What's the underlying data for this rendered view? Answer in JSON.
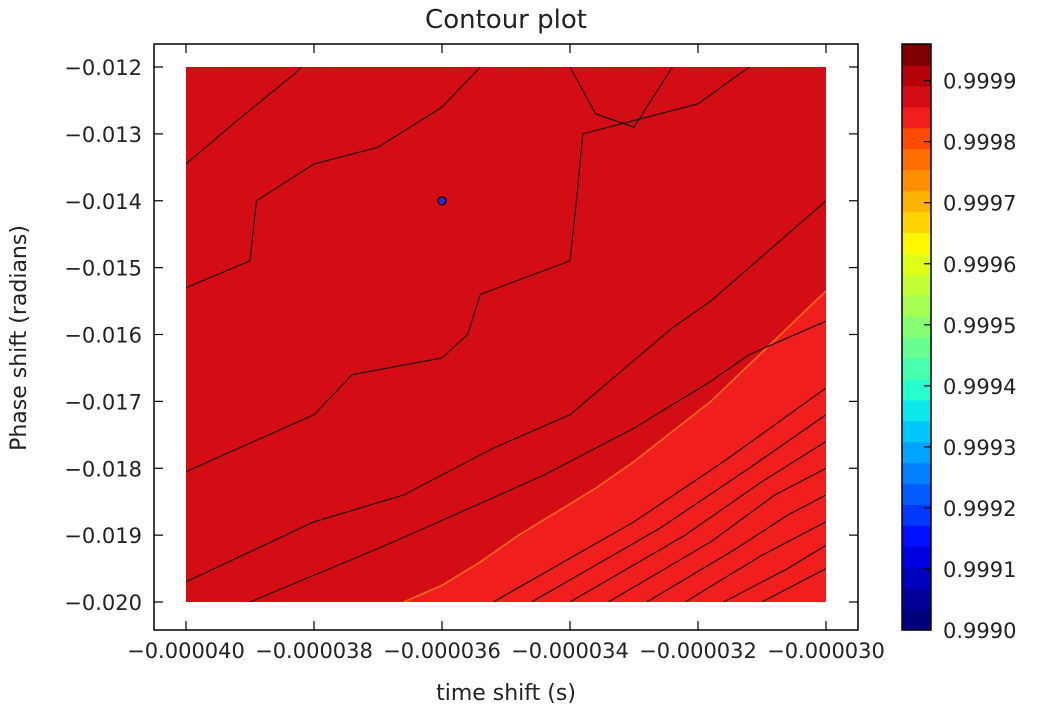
{
  "chart_data": {
    "type": "contour",
    "title": "Contour plot",
    "xlabel": "time shift (s)",
    "ylabel": "Phase shift (radians)",
    "xlim": [
      -4e-05,
      -3e-05
    ],
    "ylim": [
      -0.02,
      -0.012
    ],
    "x_ticks": [
      -4e-05,
      -3.8e-05,
      -3.6e-05,
      -3.4e-05,
      -3.2e-05,
      -3e-05
    ],
    "x_tick_labels": [
      "−0.000040",
      "−0.000038",
      "−0.000036",
      "−0.000034",
      "−0.000032",
      "−0.000030"
    ],
    "y_ticks": [
      -0.012,
      -0.013,
      -0.014,
      -0.015,
      -0.016,
      -0.017,
      -0.018,
      -0.019,
      -0.02
    ],
    "y_tick_labels": [
      "−0.012",
      "−0.013",
      "−0.014",
      "−0.015",
      "−0.016",
      "−0.017",
      "−0.018",
      "−0.019",
      "−0.020"
    ],
    "marker": {
      "x": -3.6e-05,
      "y": -0.014
    },
    "fill_regions": [
      {
        "color": "#d40d14",
        "level_range": [
          0.99988,
          0.9999
        ]
      },
      {
        "color": "#f01e1c",
        "level_range": [
          0.9998,
          0.99988
        ]
      }
    ],
    "boundary_line": [
      [
        -3.66e-05,
        -0.02
      ],
      [
        -3.6e-05,
        -0.01975
      ],
      [
        -3.54e-05,
        -0.0194
      ],
      [
        -3.48e-05,
        -0.019
      ],
      [
        -3.42e-05,
        -0.01865
      ],
      [
        -3.36e-05,
        -0.0183
      ],
      [
        -3.3e-05,
        -0.0179
      ],
      [
        -3.24e-05,
        -0.01745
      ],
      [
        -3.18e-05,
        -0.017
      ],
      [
        -3.12e-05,
        -0.01645
      ],
      [
        -3.06e-05,
        -0.0159
      ],
      [
        -3e-05,
        -0.01535
      ]
    ],
    "contour_lines": [
      [
        [
          -4e-05,
          -0.01345
        ],
        [
          -3.92e-05,
          -0.0128
        ],
        [
          -3.83e-05,
          -0.0121
        ],
        [
          -3.82e-05,
          -0.012
        ]
      ],
      [
        [
          -4e-05,
          -0.0153
        ],
        [
          -3.9e-05,
          -0.0149
        ],
        [
          -3.89e-05,
          -0.014
        ],
        [
          -3.8e-05,
          -0.01345
        ],
        [
          -3.7e-05,
          -0.0132
        ],
        [
          -3.6e-05,
          -0.0126
        ],
        [
          -3.54e-05,
          -0.012
        ]
      ],
      [
        [
          -3.4e-05,
          -0.012
        ],
        [
          -3.36e-05,
          -0.0127
        ],
        [
          -3.3e-05,
          -0.0129
        ],
        [
          -3.26e-05,
          -0.0123
        ],
        [
          -3.24e-05,
          -0.012
        ]
      ],
      [
        [
          -4e-05,
          -0.01805
        ],
        [
          -3.8e-05,
          -0.0172
        ],
        [
          -3.74e-05,
          -0.0166
        ],
        [
          -3.6e-05,
          -0.01635
        ],
        [
          -3.56e-05,
          -0.016
        ],
        [
          -3.54e-05,
          -0.0154
        ],
        [
          -3.4e-05,
          -0.0149
        ],
        [
          -3.39e-05,
          -0.014
        ],
        [
          -3.38e-05,
          -0.013
        ],
        [
          -3.2e-05,
          -0.01255
        ],
        [
          -3.12e-05,
          -0.012
        ]
      ],
      [
        [
          -4e-05,
          -0.0197
        ],
        [
          -3.8e-05,
          -0.0188
        ],
        [
          -3.66e-05,
          -0.0184
        ],
        [
          -3.58e-05,
          -0.018
        ],
        [
          -3.52e-05,
          -0.0177
        ],
        [
          -3.4e-05,
          -0.0172
        ],
        [
          -3.24e-05,
          -0.0159
        ],
        [
          -3.18e-05,
          -0.0155
        ],
        [
          -3e-05,
          -0.014
        ]
      ],
      [
        [
          -3.9e-05,
          -0.02
        ],
        [
          -3.7e-05,
          -0.0192
        ],
        [
          -3.64e-05,
          -0.01895
        ],
        [
          -3.44e-05,
          -0.0181
        ],
        [
          -3.3e-05,
          -0.0174
        ],
        [
          -3.18e-05,
          -0.0167
        ],
        [
          -3.12e-05,
          -0.0163
        ],
        [
          -3e-05,
          -0.0158
        ]
      ],
      [
        [
          -3.52e-05,
          -0.02
        ],
        [
          -3.3e-05,
          -0.0188
        ],
        [
          -3.16e-05,
          -0.0179
        ],
        [
          -3e-05,
          -0.0168
        ]
      ],
      [
        [
          -3.46e-05,
          -0.02
        ],
        [
          -3.26e-05,
          -0.0189
        ],
        [
          -3.12e-05,
          -0.018
        ],
        [
          -3e-05,
          -0.0172
        ]
      ],
      [
        [
          -3.4e-05,
          -0.02
        ],
        [
          -3.22e-05,
          -0.019
        ],
        [
          -3.1e-05,
          -0.0182
        ],
        [
          -3e-05,
          -0.0176
        ]
      ],
      [
        [
          -3.34e-05,
          -0.02
        ],
        [
          -3.18e-05,
          -0.0191
        ],
        [
          -3.08e-05,
          -0.0184
        ],
        [
          -3e-05,
          -0.018
        ]
      ],
      [
        [
          -3.28e-05,
          -0.02
        ],
        [
          -3.14e-05,
          -0.0192
        ],
        [
          -3.06e-05,
          -0.0187
        ],
        [
          -3e-05,
          -0.0184
        ]
      ],
      [
        [
          -3.22e-05,
          -0.02
        ],
        [
          -3.1e-05,
          -0.0193
        ],
        [
          -3e-05,
          -0.0188
        ]
      ],
      [
        [
          -3.16e-05,
          -0.02
        ],
        [
          -3.06e-05,
          -0.0195
        ],
        [
          -3e-05,
          -0.01915
        ]
      ],
      [
        [
          -3.1e-05,
          -0.02
        ],
        [
          -3.02e-05,
          -0.0196
        ],
        [
          -3e-05,
          -0.0195
        ]
      ]
    ],
    "colorbar": {
      "range": [
        0.999,
        0.99996
      ],
      "tick_values": [
        0.999,
        0.9991,
        0.9992,
        0.9993,
        0.9994,
        0.9995,
        0.9996,
        0.9997,
        0.9998,
        0.9999
      ],
      "tick_labels": [
        "0.9990",
        "0.9991",
        "0.9992",
        "0.9993",
        "0.9994",
        "0.9995",
        "0.9996",
        "0.9997",
        "0.9998",
        "0.9999"
      ],
      "bands": [
        "#00007f",
        "#000099",
        "#0000bd",
        "#0000e1",
        "#0010ff",
        "#0038ff",
        "#005cff",
        "#0080ff",
        "#00a4ff",
        "#00c8ff",
        "#0ce8ec",
        "#28ffce",
        "#48ffae",
        "#66ff90",
        "#84ff72",
        "#a4ff52",
        "#c2ff34",
        "#e0ff16",
        "#fff700",
        "#ffd300",
        "#ffb200",
        "#ff8e00",
        "#ff6d00",
        "#ff4a00",
        "#f01e1c",
        "#d40d14",
        "#b40008",
        "#7f0000"
      ]
    }
  }
}
